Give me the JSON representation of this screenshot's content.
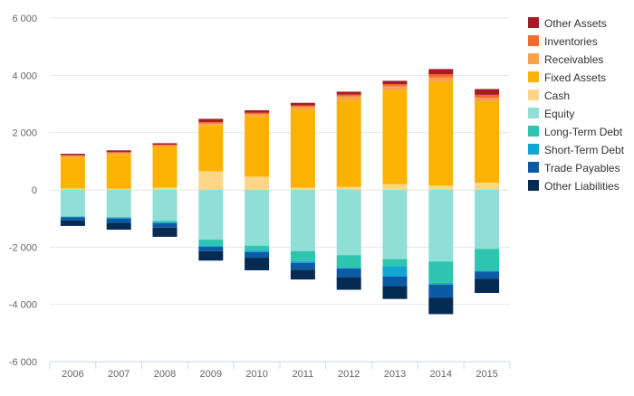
{
  "chart_data": {
    "type": "bar",
    "stacked": true,
    "categories": [
      "2006",
      "2007",
      "2008",
      "2009",
      "2010",
      "2011",
      "2012",
      "2013",
      "2014",
      "2015"
    ],
    "ylim": [
      -6000,
      6000
    ],
    "yticks": [
      -6000,
      -4000,
      -2000,
      0,
      2000,
      4000,
      6000
    ],
    "ytick_labels": [
      "-6 000",
      "-4 000",
      "-2 000",
      "0",
      "2 000",
      "4 000",
      "6 000"
    ],
    "grid": true,
    "legend_position": "right",
    "series": [
      {
        "name": "Other Assets",
        "color": "#a51c24",
        "values": [
          50,
          60,
          50,
          110,
          80,
          90,
          100,
          120,
          180,
          200
        ]
      },
      {
        "name": "Inventories",
        "color": "#f26a2c",
        "values": [
          30,
          30,
          30,
          50,
          50,
          50,
          60,
          70,
          110,
          100
        ]
      },
      {
        "name": "Receivables",
        "color": "#f7a24b",
        "values": [
          50,
          60,
          50,
          70,
          90,
          100,
          140,
          150,
          160,
          150
        ]
      },
      {
        "name": "Fixed Assets",
        "color": "#fbb200",
        "values": [
          1080,
          1190,
          1420,
          1600,
          2100,
          2720,
          3020,
          3270,
          3620,
          2820
        ]
      },
      {
        "name": "Cash",
        "color": "#fdd68a",
        "values": [
          50,
          40,
          80,
          650,
          460,
          80,
          110,
          200,
          150,
          250
        ]
      },
      {
        "name": "Equity",
        "color": "#90dfd6",
        "values": [
          -920,
          -950,
          -1080,
          -1740,
          -1950,
          -2140,
          -2280,
          -2420,
          -2500,
          -2060
        ]
      },
      {
        "name": "Long-Term Debt",
        "color": "#2ec4b0",
        "values": [
          -20,
          -30,
          -50,
          -220,
          -170,
          -350,
          -440,
          -250,
          -750,
          -760
        ]
      },
      {
        "name": "Short-Term Debt",
        "color": "#12a6d4",
        "values": [
          -20,
          -20,
          -30,
          -30,
          -50,
          -60,
          -30,
          -360,
          -60,
          -30
        ]
      },
      {
        "name": "Trade Payables",
        "color": "#0b5aa6",
        "values": [
          -110,
          -150,
          -160,
          -150,
          -200,
          -240,
          -300,
          -330,
          -450,
          -250
        ]
      },
      {
        "name": "Other Liabilities",
        "color": "#062b53",
        "values": [
          -190,
          -240,
          -320,
          -330,
          -440,
          -340,
          -440,
          -450,
          -580,
          -500
        ]
      }
    ]
  }
}
